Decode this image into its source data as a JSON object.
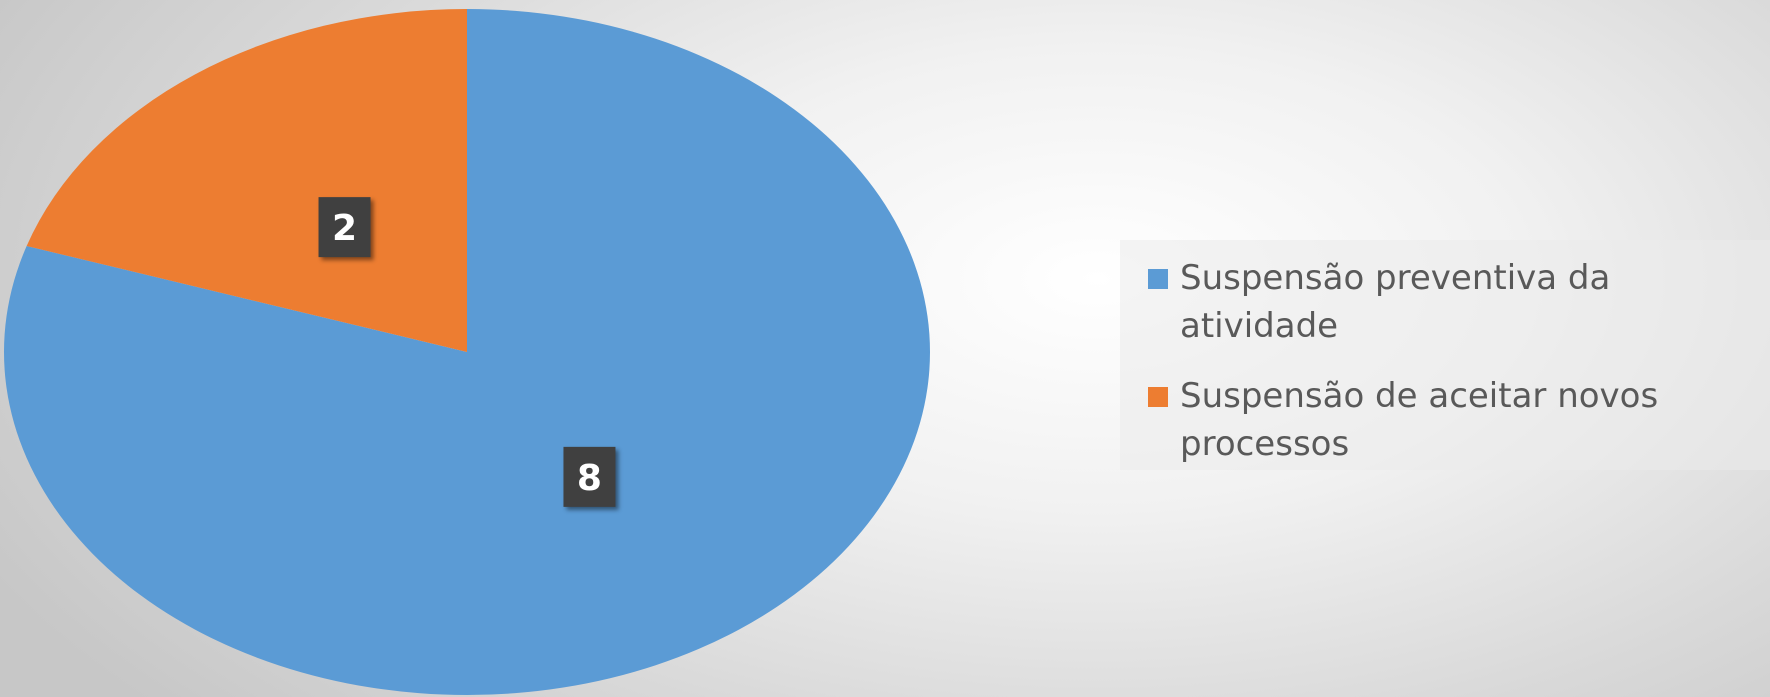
{
  "chart_data": {
    "type": "pie",
    "title": "",
    "categories": [
      "Suspensão preventiva da atividade",
      "Suspensão de aceitar novos processos"
    ],
    "values": [
      8,
      2
    ],
    "colors": [
      "#5b9bd5",
      "#ed7d31"
    ],
    "start_angle_deg": 0,
    "direction": "clockwise",
    "data_labels": [
      "8",
      "2"
    ],
    "legend_position": "right"
  }
}
